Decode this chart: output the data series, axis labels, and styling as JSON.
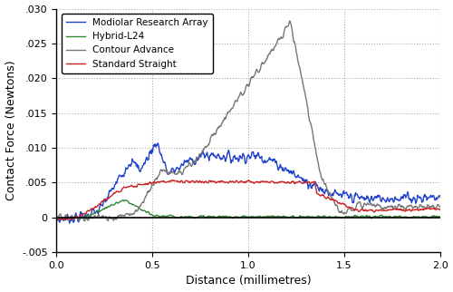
{
  "title": "",
  "xlabel": "Distance (millimetres)",
  "ylabel": "Contact Force (Newtons)",
  "xlim": [
    0.0,
    2.0
  ],
  "ylim": [
    -0.005,
    0.03
  ],
  "xticks": [
    0.0,
    0.5,
    1.0,
    1.5,
    2.0
  ],
  "yticks": [
    -0.005,
    0.0,
    0.005,
    0.01,
    0.015,
    0.02,
    0.025,
    0.03
  ],
  "grid_color": "#aaaaaa",
  "legend": [
    {
      "label": "Modiolar Research Array",
      "color": "#2244cc"
    },
    {
      "label": "Hybrid-L24",
      "color": "#338833"
    },
    {
      "label": "Contour Advance",
      "color": "#777777"
    },
    {
      "label": "Standard Straight",
      "color": "#cc2222"
    }
  ],
  "background_color": "#ffffff",
  "line_width": 1.0
}
